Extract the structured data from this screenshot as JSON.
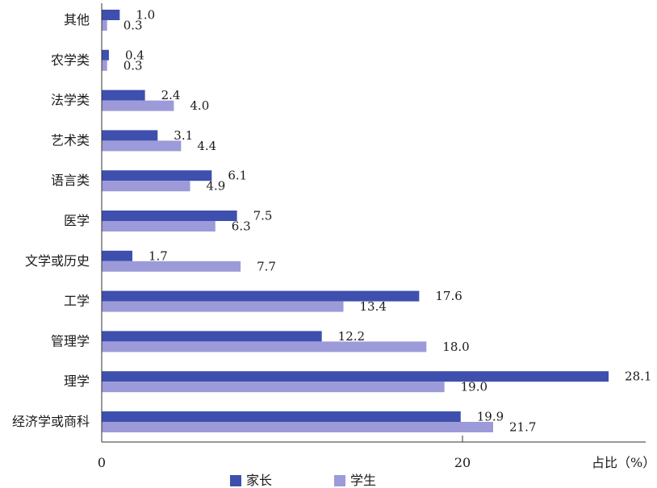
{
  "chart_data": {
    "type": "bar",
    "orientation": "horizontal",
    "categories": [
      "其他",
      "农学类",
      "法学类",
      "艺术类",
      "语言类",
      "医学",
      "文学或历史",
      "工学",
      "管理学",
      "理学",
      "经济学或商科"
    ],
    "series": [
      {
        "name": "家长",
        "color": "#3f4fae",
        "values": [
          1.0,
          0.4,
          2.4,
          3.1,
          6.1,
          7.5,
          1.7,
          17.6,
          12.2,
          28.1,
          19.9
        ]
      },
      {
        "name": "学生",
        "color": "#9c9ad8",
        "values": [
          0.3,
          0.3,
          4.0,
          4.4,
          4.9,
          6.3,
          7.7,
          13.4,
          18.0,
          19.0,
          21.7
        ]
      }
    ],
    "value_labels": [
      [
        "1.0",
        "0.4",
        "2.4",
        "3.1",
        "6.1",
        "7.5",
        "1.7",
        "17.6",
        "12.2",
        "28.1",
        "19.9"
      ],
      [
        "0.3",
        "0.3",
        "4.0",
        "4.4",
        "4.9",
        "6.3",
        "7.7",
        "13.4",
        "18.0",
        "19.0",
        "21.7"
      ]
    ],
    "xlim": [
      0,
      30
    ],
    "x_ticks": [
      0,
      20
    ],
    "x_tick_labels": [
      "0",
      "20"
    ],
    "xlabel": "占比（%）",
    "legend_position": "bottom-center",
    "grid": false
  }
}
